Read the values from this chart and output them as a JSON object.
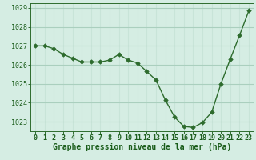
{
  "x": [
    0,
    1,
    2,
    3,
    4,
    5,
    6,
    7,
    8,
    9,
    10,
    11,
    12,
    13,
    14,
    15,
    16,
    17,
    18,
    19,
    20,
    21,
    22,
    23
  ],
  "y": [
    1027.0,
    1027.0,
    1026.85,
    1026.55,
    1026.35,
    1026.15,
    1026.15,
    1026.15,
    1026.25,
    1026.55,
    1026.25,
    1026.1,
    1025.65,
    1025.2,
    1024.15,
    1023.25,
    1022.75,
    1022.7,
    1022.95,
    1023.5,
    1025.0,
    1026.3,
    1027.55,
    1028.85
  ],
  "line_color": "#2d6b2d",
  "marker": "D",
  "marker_size": 2.8,
  "bg_color": "#d5ede3",
  "grid_color": "#aacfbe",
  "grid_vcolor": "#c8e4d8",
  "title": "Graphe pression niveau de la mer (hPa)",
  "label_color": "#1a5c1a",
  "ylim_min": 1022.5,
  "ylim_max": 1029.25,
  "yticks": [
    1023,
    1024,
    1025,
    1026,
    1027,
    1028,
    1029
  ],
  "xticks": [
    0,
    1,
    2,
    3,
    4,
    5,
    6,
    7,
    8,
    9,
    10,
    11,
    12,
    13,
    14,
    15,
    16,
    17,
    18,
    19,
    20,
    21,
    22,
    23
  ],
  "title_fontsize": 7.0,
  "tick_fontsize": 6.0,
  "linewidth": 1.0
}
